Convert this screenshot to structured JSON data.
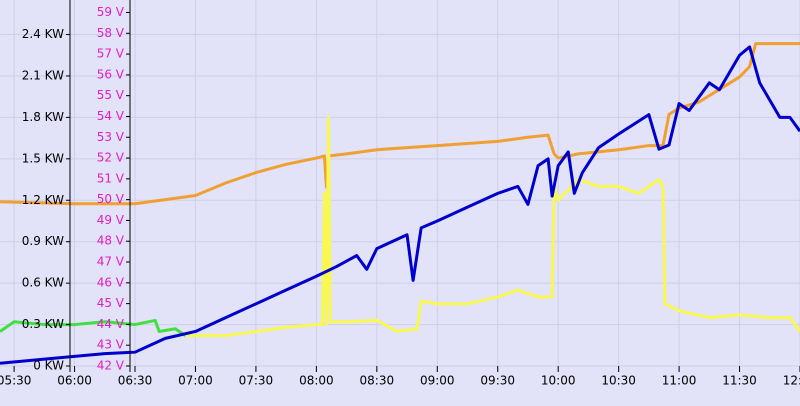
{
  "chart_data": {
    "type": "line",
    "xlim": [
      "05:23",
      "12:00"
    ],
    "xticks": [
      "05:30",
      "06:00",
      "06:30",
      "07:00",
      "07:30",
      "08:00",
      "08:30",
      "09:00",
      "09:30",
      "10:00",
      "10:30",
      "11:00",
      "11:30",
      "12:00"
    ],
    "ylim": [
      0,
      2.65
    ],
    "yticks": [
      {
        "value": 0,
        "label": "0 KW"
      },
      {
        "value": 0.3,
        "label": "0.3 KW"
      },
      {
        "value": 0.6,
        "label": "0.6 KW"
      },
      {
        "value": 0.9,
        "label": "0.9 KW"
      },
      {
        "value": 1.2,
        "label": "1.2 KW"
      },
      {
        "value": 1.5,
        "label": "1.5 KW"
      },
      {
        "value": 1.8,
        "label": "1.8 KW"
      },
      {
        "value": 2.1,
        "label": "2.1 KW"
      },
      {
        "value": 2.4,
        "label": "2.4 KW"
      }
    ],
    "y2lim": [
      42,
      59.6
    ],
    "y2ticks": [
      {
        "value": 42,
        "label": "42 V"
      },
      {
        "value": 43,
        "label": "43 V"
      },
      {
        "value": 44,
        "label": "44 V"
      },
      {
        "value": 45,
        "label": "45 V"
      },
      {
        "value": 46,
        "label": "46 V"
      },
      {
        "value": 47,
        "label": "47 V"
      },
      {
        "value": 48,
        "label": "48 V"
      },
      {
        "value": 49,
        "label": "49 V"
      },
      {
        "value": 50,
        "label": "50 V"
      },
      {
        "value": 51,
        "label": "51 V"
      },
      {
        "value": 52,
        "label": "52 V"
      },
      {
        "value": 53,
        "label": "53 V"
      },
      {
        "value": 54,
        "label": "54 V"
      },
      {
        "value": 55,
        "label": "55 V"
      },
      {
        "value": 56,
        "label": "56 V"
      },
      {
        "value": 57,
        "label": "57 V"
      },
      {
        "value": 58,
        "label": "58 V"
      },
      {
        "value": 59,
        "label": "59 V"
      }
    ],
    "grid": true,
    "series": [
      {
        "color": "#f0a030",
        "axis": "y2",
        "x": [
          "05:23",
          "06:00",
          "06:30",
          "06:45",
          "07:00",
          "07:15",
          "07:30",
          "07:45",
          "08:00",
          "08:04",
          "08:05",
          "08:06",
          "08:15",
          "08:30",
          "08:45",
          "09:00",
          "09:30",
          "09:45",
          "09:55",
          "09:58",
          "10:00",
          "10:10",
          "10:30",
          "10:45",
          "10:52",
          "10:55",
          "11:00",
          "11:10",
          "11:20",
          "11:30",
          "11:35",
          "11:38",
          "11:45",
          "12:00"
        ],
        "values": [
          49.9,
          49.8,
          49.8,
          50.0,
          50.2,
          50.8,
          51.3,
          51.7,
          52.0,
          52.1,
          50.6,
          52.1,
          52.2,
          52.4,
          52.5,
          52.6,
          52.8,
          53.0,
          53.1,
          52.2,
          52.0,
          52.2,
          52.4,
          52.6,
          52.6,
          54.1,
          54.4,
          54.7,
          55.3,
          55.9,
          56.4,
          57.5,
          57.5,
          57.5
        ]
      },
      {
        "color": "#40e040",
        "x": [
          "05:23",
          "05:30",
          "05:45",
          "06:00",
          "06:15",
          "06:30",
          "06:40",
          "06:42",
          "06:50",
          "06:55"
        ],
        "values": [
          0.25,
          0.32,
          0.3,
          0.3,
          0.32,
          0.3,
          0.33,
          0.25,
          0.27,
          0.22
        ]
      },
      {
        "color": "#f8f850",
        "x": [
          "06:55",
          "07:00",
          "07:15",
          "07:30",
          "07:45",
          "08:00",
          "08:03",
          "08:04",
          "08:05",
          "08:06",
          "08:07",
          "08:15",
          "08:30",
          "08:40",
          "08:50",
          "08:52",
          "09:00",
          "09:15",
          "09:30",
          "09:40",
          "09:50",
          "09:57",
          "09:58",
          "10:00",
          "10:10",
          "10:20",
          "10:30",
          "10:40",
          "10:50",
          "10:52",
          "10:53",
          "11:00",
          "11:15",
          "11:30",
          "11:45",
          "11:55",
          "12:00"
        ],
        "values": [
          0.22,
          0.22,
          0.22,
          0.25,
          0.28,
          0.3,
          0.3,
          1.25,
          0.3,
          1.8,
          0.32,
          0.32,
          0.33,
          0.25,
          0.27,
          0.47,
          0.45,
          0.45,
          0.5,
          0.55,
          0.5,
          0.5,
          1.3,
          1.2,
          1.35,
          1.3,
          1.3,
          1.25,
          1.35,
          1.3,
          0.45,
          0.4,
          0.35,
          0.37,
          0.35,
          0.35,
          0.25
        ]
      },
      {
        "color": "#0000cc",
        "x": [
          "05:23",
          "05:45",
          "06:00",
          "06:15",
          "06:30",
          "06:45",
          "07:00",
          "07:15",
          "07:30",
          "07:45",
          "08:00",
          "08:10",
          "08:20",
          "08:25",
          "08:30",
          "08:45",
          "08:48",
          "08:52",
          "09:00",
          "09:15",
          "09:30",
          "09:40",
          "09:45",
          "09:50",
          "09:55",
          "09:57",
          "10:00",
          "10:05",
          "10:08",
          "10:12",
          "10:20",
          "10:30",
          "10:45",
          "10:50",
          "10:55",
          "11:00",
          "11:05",
          "11:15",
          "11:20",
          "11:30",
          "11:35",
          "11:40",
          "11:50",
          "11:55",
          "12:00"
        ],
        "values": [
          0.02,
          0.05,
          0.07,
          0.09,
          0.1,
          0.2,
          0.25,
          0.35,
          0.45,
          0.55,
          0.65,
          0.72,
          0.8,
          0.7,
          0.85,
          0.95,
          0.62,
          1.0,
          1.05,
          1.15,
          1.25,
          1.3,
          1.17,
          1.45,
          1.5,
          1.23,
          1.45,
          1.55,
          1.25,
          1.4,
          1.58,
          1.68,
          1.82,
          1.57,
          1.6,
          1.9,
          1.85,
          2.05,
          2.0,
          2.25,
          2.31,
          2.05,
          1.8,
          1.8,
          1.7
        ]
      }
    ]
  }
}
